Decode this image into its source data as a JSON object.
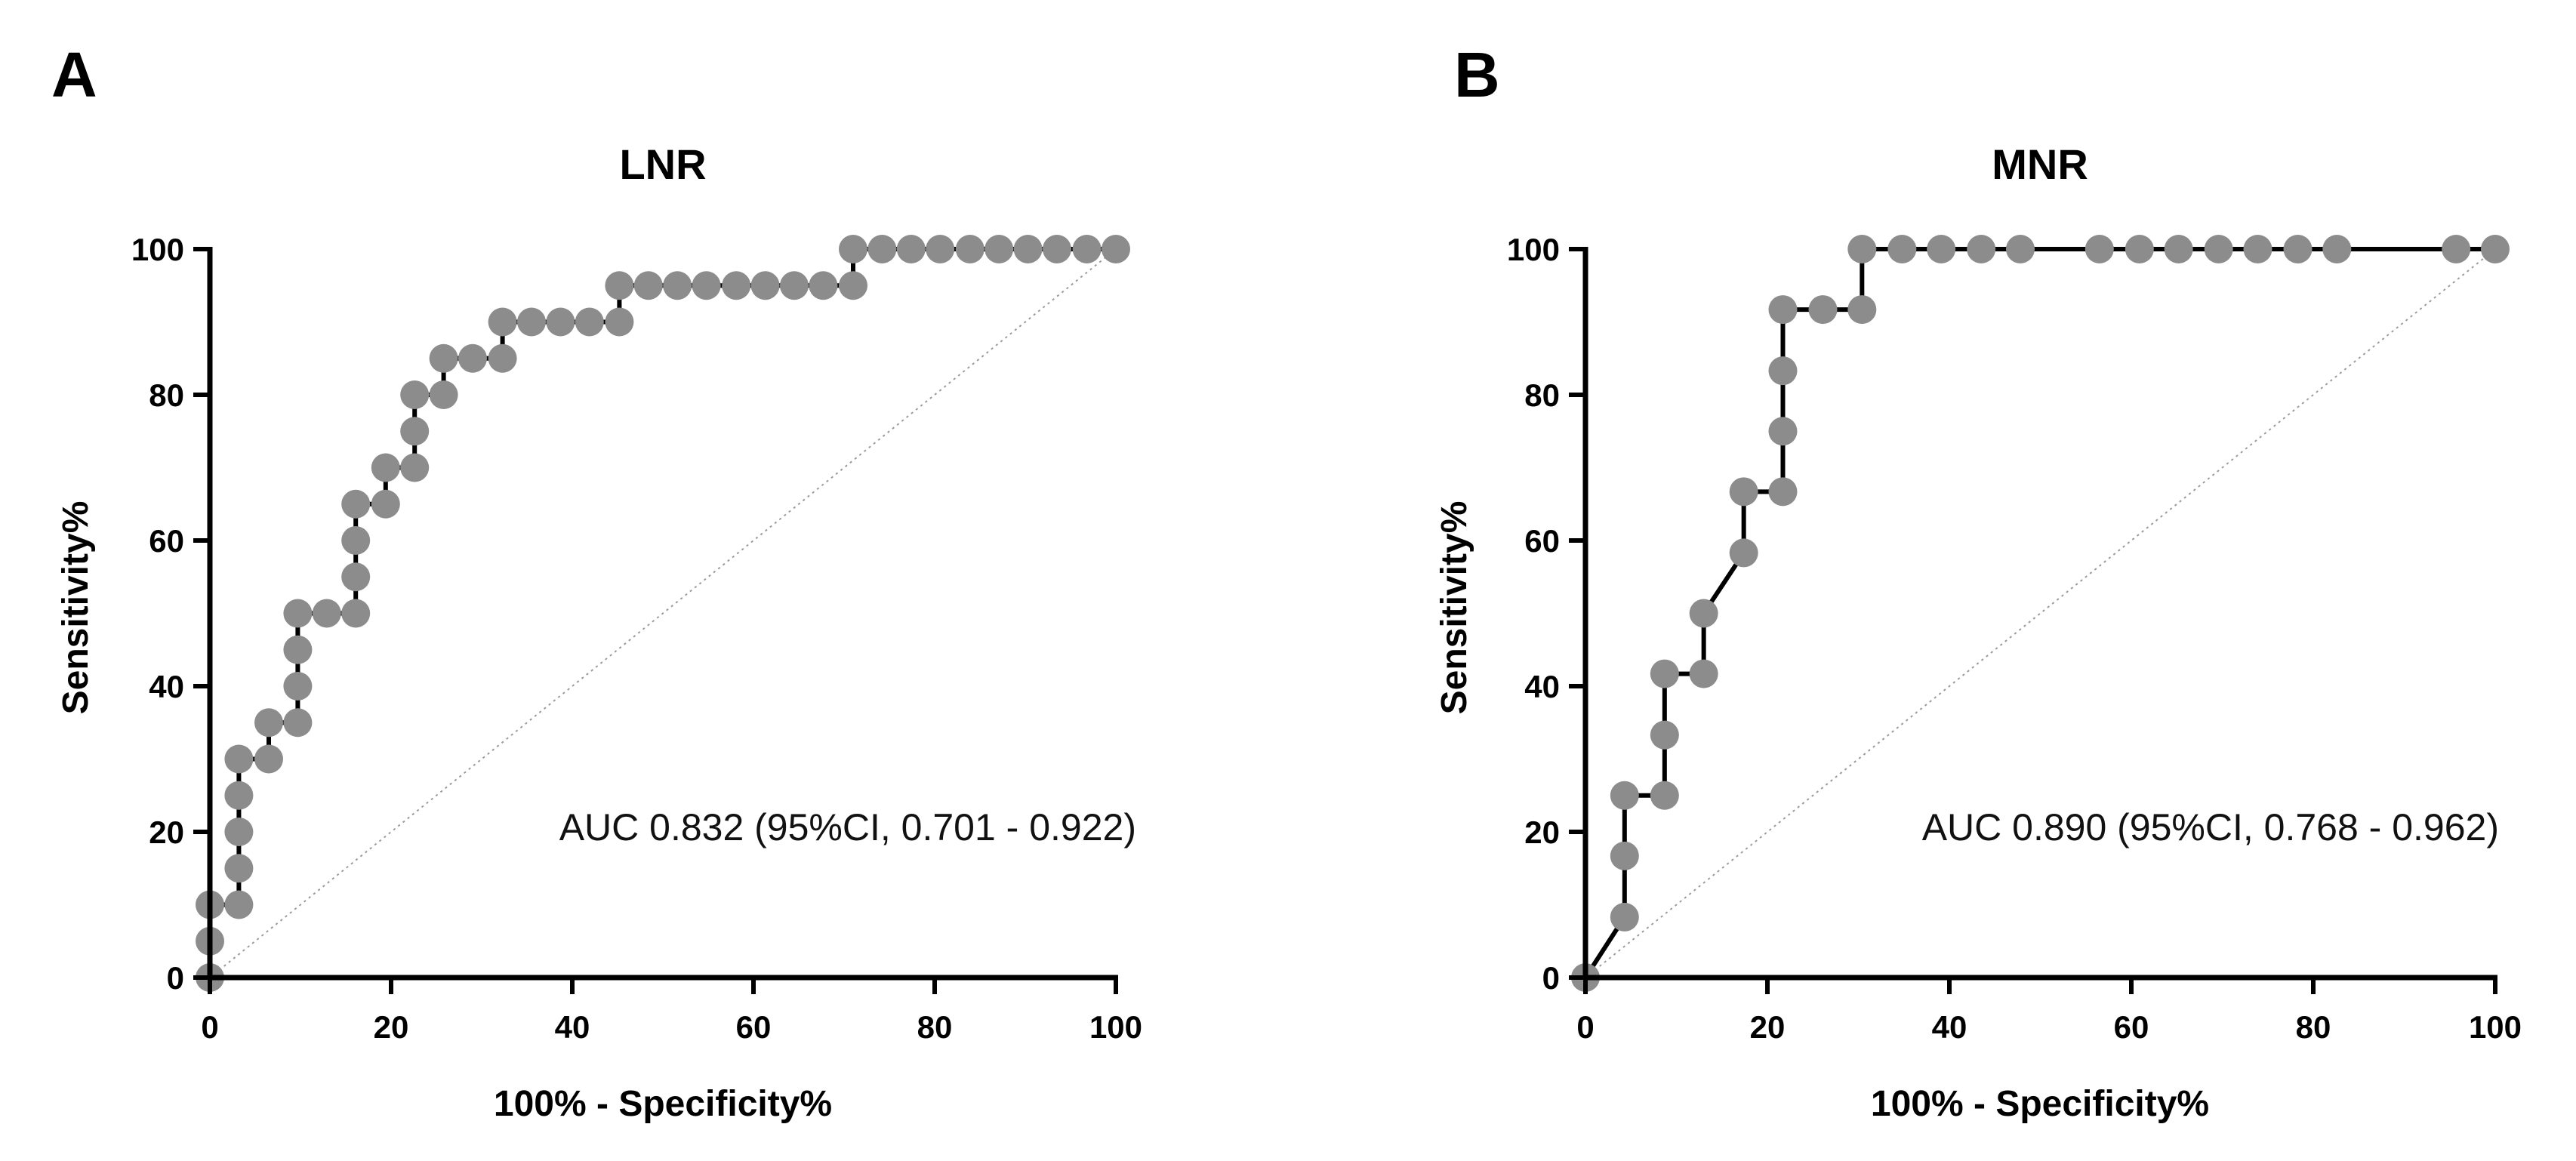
{
  "chart_data": [
    {
      "panel": "A",
      "type": "scatter",
      "title": "LNR",
      "xlabel": "100% - Specificity%",
      "ylabel": "Sensitivity%",
      "xlim": [
        0,
        100
      ],
      "ylim": [
        0,
        100
      ],
      "xticks": [
        0,
        20,
        40,
        60,
        80,
        100
      ],
      "yticks": [
        0,
        20,
        40,
        60,
        80,
        100
      ],
      "annotation": "AUC 0.832 (95%CI, 0.701 - 0.922)",
      "reference_line": [
        [
          0,
          0
        ],
        [
          100,
          100
        ]
      ],
      "points": [
        [
          0,
          0
        ],
        [
          0,
          5
        ],
        [
          0,
          10
        ],
        [
          3.2,
          10
        ],
        [
          3.2,
          15
        ],
        [
          3.2,
          20
        ],
        [
          3.2,
          25
        ],
        [
          3.2,
          30
        ],
        [
          6.5,
          30
        ],
        [
          6.5,
          35
        ],
        [
          9.7,
          35
        ],
        [
          9.7,
          40
        ],
        [
          9.7,
          45
        ],
        [
          9.7,
          50
        ],
        [
          12.9,
          50
        ],
        [
          16.1,
          50
        ],
        [
          16.1,
          55
        ],
        [
          16.1,
          60
        ],
        [
          16.1,
          65
        ],
        [
          19.4,
          65
        ],
        [
          19.4,
          70
        ],
        [
          22.6,
          70
        ],
        [
          22.6,
          75
        ],
        [
          22.6,
          80
        ],
        [
          25.8,
          80
        ],
        [
          25.8,
          85
        ],
        [
          29,
          85
        ],
        [
          32.3,
          85
        ],
        [
          32.3,
          90
        ],
        [
          35.5,
          90
        ],
        [
          38.7,
          90
        ],
        [
          41.9,
          90
        ],
        [
          45.2,
          90
        ],
        [
          45.2,
          95
        ],
        [
          48.4,
          95
        ],
        [
          51.6,
          95
        ],
        [
          54.8,
          95
        ],
        [
          58.1,
          95
        ],
        [
          61.3,
          95
        ],
        [
          64.5,
          95
        ],
        [
          67.7,
          95
        ],
        [
          71,
          95
        ],
        [
          71,
          100
        ],
        [
          74.2,
          100
        ],
        [
          77.4,
          100
        ],
        [
          80.6,
          100
        ],
        [
          83.9,
          100
        ],
        [
          87.1,
          100
        ],
        [
          90.3,
          100
        ],
        [
          93.5,
          100
        ],
        [
          96.8,
          100
        ],
        [
          100,
          100
        ]
      ],
      "curve": [
        [
          0,
          0
        ],
        [
          0,
          10
        ],
        [
          3.2,
          10
        ],
        [
          3.2,
          30
        ],
        [
          6.5,
          30
        ],
        [
          6.5,
          35
        ],
        [
          9.7,
          35
        ],
        [
          9.7,
          50
        ],
        [
          16.1,
          50
        ],
        [
          16.1,
          65
        ],
        [
          19.4,
          65
        ],
        [
          19.4,
          70
        ],
        [
          22.6,
          70
        ],
        [
          22.6,
          80
        ],
        [
          25.8,
          80
        ],
        [
          25.8,
          85
        ],
        [
          32.3,
          85
        ],
        [
          32.3,
          90
        ],
        [
          45.2,
          90
        ],
        [
          45.2,
          95
        ],
        [
          71,
          95
        ],
        [
          71,
          100
        ],
        [
          100,
          100
        ]
      ]
    },
    {
      "panel": "B",
      "type": "scatter",
      "title": "MNR",
      "xlabel": "100% - Specificity%",
      "ylabel": "Sensitivity%",
      "xlim": [
        0,
        100
      ],
      "ylim": [
        0,
        100
      ],
      "xticks": [
        0,
        20,
        40,
        60,
        80,
        100
      ],
      "yticks": [
        0,
        20,
        40,
        60,
        80,
        100
      ],
      "annotation": "AUC 0.890 (95%CI, 0.768 - 0.962)",
      "reference_line": [
        [
          0,
          0
        ],
        [
          100,
          100
        ]
      ],
      "points": [
        [
          0,
          0
        ],
        [
          4.3,
          8.3
        ],
        [
          4.3,
          16.7
        ],
        [
          4.3,
          25
        ],
        [
          8.7,
          25
        ],
        [
          8.7,
          33.3
        ],
        [
          8.7,
          41.7
        ],
        [
          13,
          41.7
        ],
        [
          13,
          50
        ],
        [
          17.4,
          58.3
        ],
        [
          17.4,
          66.7
        ],
        [
          21.7,
          66.7
        ],
        [
          21.7,
          75
        ],
        [
          21.7,
          83.3
        ],
        [
          21.7,
          91.7
        ],
        [
          26.1,
          91.7
        ],
        [
          30.4,
          91.7
        ],
        [
          30.4,
          100
        ],
        [
          34.8,
          100
        ],
        [
          39.1,
          100
        ],
        [
          43.5,
          100
        ],
        [
          47.8,
          100
        ],
        [
          56.5,
          100
        ],
        [
          60.9,
          100
        ],
        [
          65.2,
          100
        ],
        [
          69.6,
          100
        ],
        [
          73.9,
          100
        ],
        [
          78.3,
          100
        ],
        [
          82.6,
          100
        ],
        [
          95.7,
          100
        ],
        [
          100,
          100
        ]
      ],
      "curve": [
        [
          0,
          0
        ],
        [
          4.3,
          8.3
        ],
        [
          4.3,
          25
        ],
        [
          8.7,
          25
        ],
        [
          8.7,
          41.7
        ],
        [
          13,
          41.7
        ],
        [
          13,
          50
        ],
        [
          17.4,
          58.3
        ],
        [
          17.4,
          66.7
        ],
        [
          21.7,
          66.7
        ],
        [
          21.7,
          91.7
        ],
        [
          30.4,
          91.7
        ],
        [
          30.4,
          100
        ],
        [
          100,
          100
        ]
      ]
    }
  ]
}
